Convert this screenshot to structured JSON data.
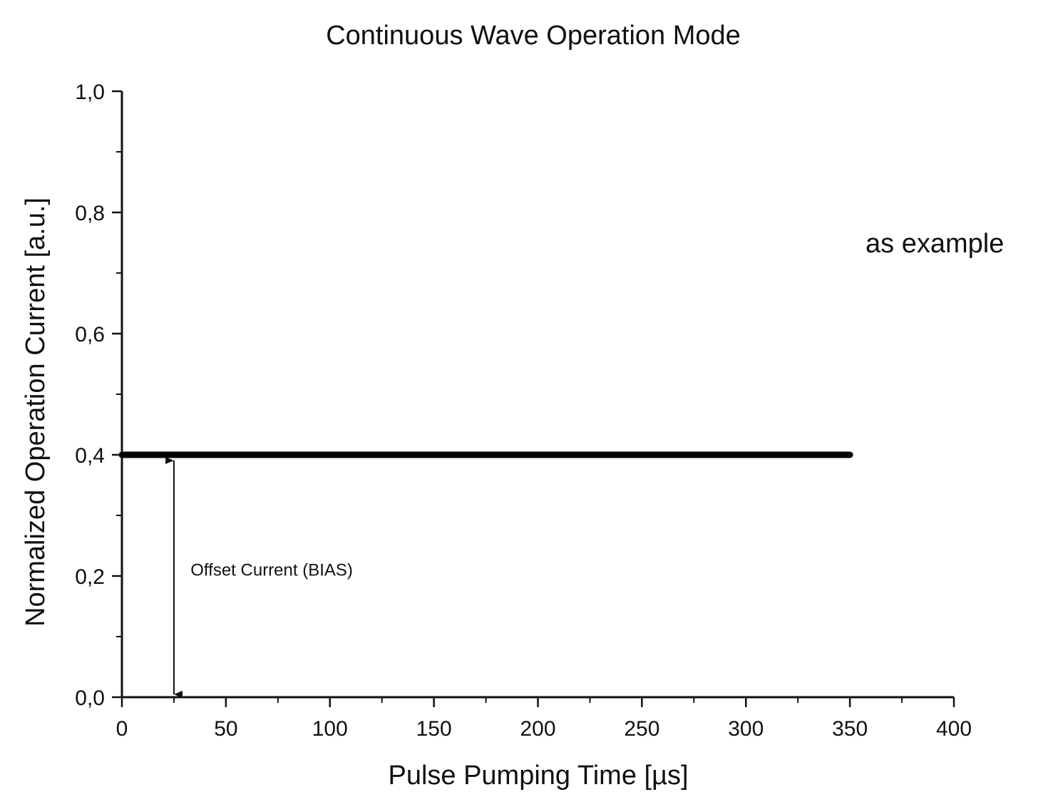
{
  "chart_data": {
    "type": "line",
    "title": "Continuous Wave Operation Mode",
    "xlabel": "Pulse Pumping Time [µs]",
    "ylabel": "Normalized Operation Current [a.u.]",
    "xlim": [
      0,
      400
    ],
    "ylim": [
      0,
      1.0
    ],
    "x_ticks": [
      0,
      50,
      100,
      150,
      200,
      250,
      300,
      350,
      400
    ],
    "x_tick_labels": [
      "0",
      "50",
      "100",
      "150",
      "200",
      "250",
      "300",
      "350",
      "400"
    ],
    "x_minor_ticks": [
      25,
      75,
      125,
      175,
      225,
      275,
      325,
      375
    ],
    "y_ticks": [
      0,
      0.2,
      0.4,
      0.6,
      0.8,
      1.0
    ],
    "y_tick_labels": [
      "0,0",
      "0,2",
      "0,4",
      "0,6",
      "0,8",
      "1,0"
    ],
    "y_minor_ticks": [
      0.1,
      0.3,
      0.5,
      0.7,
      0.9
    ],
    "grid": false,
    "series": [
      {
        "x": [
          0,
          350
        ],
        "y": [
          0.4,
          0.4
        ],
        "color": "#000000"
      }
    ],
    "annotations": [
      {
        "text": "Offset Current (BIAS)",
        "type": "double-arrow",
        "x": 25,
        "y_from": 0.0,
        "y_to": 0.4,
        "label_x": 33,
        "label_y": 0.21
      }
    ],
    "note": "as example"
  }
}
